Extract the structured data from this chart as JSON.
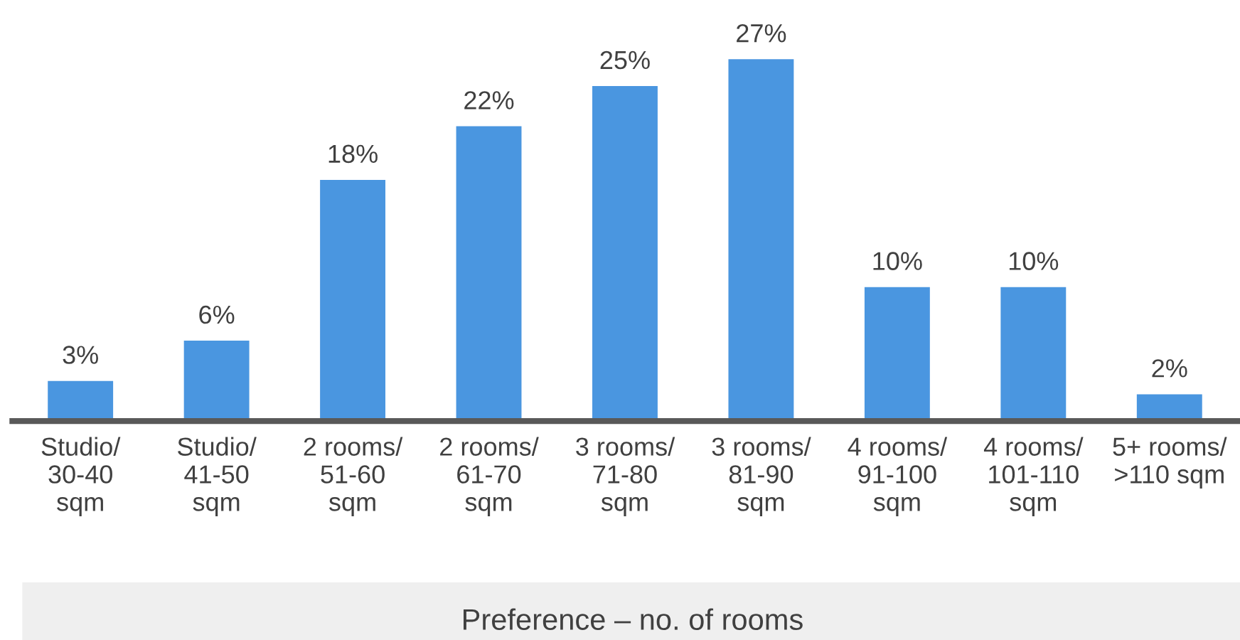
{
  "chart_data": {
    "type": "bar",
    "xlabel": "Preference – no. of rooms",
    "categories": [
      "Studio/\n30-40\nsqm",
      "Studio/\n41-50\nsqm",
      "2 rooms/\n51-60\nsqm",
      "2 rooms/\n61-70\nsqm",
      "3 rooms/\n71-80\nsqm",
      "3 rooms/\n81-90\nsqm",
      "4 rooms/\n91-100\nsqm",
      "4 rooms/\n101-110\nsqm",
      "5+ rooms/\n>110 sqm"
    ],
    "values": [
      3,
      6,
      18,
      22,
      25,
      27,
      10,
      10,
      2
    ],
    "value_labels": [
      "3%",
      "6%",
      "18%",
      "22%",
      "25%",
      "27%",
      "10%",
      "10%",
      "2%"
    ],
    "color": "#4a96e0"
  }
}
